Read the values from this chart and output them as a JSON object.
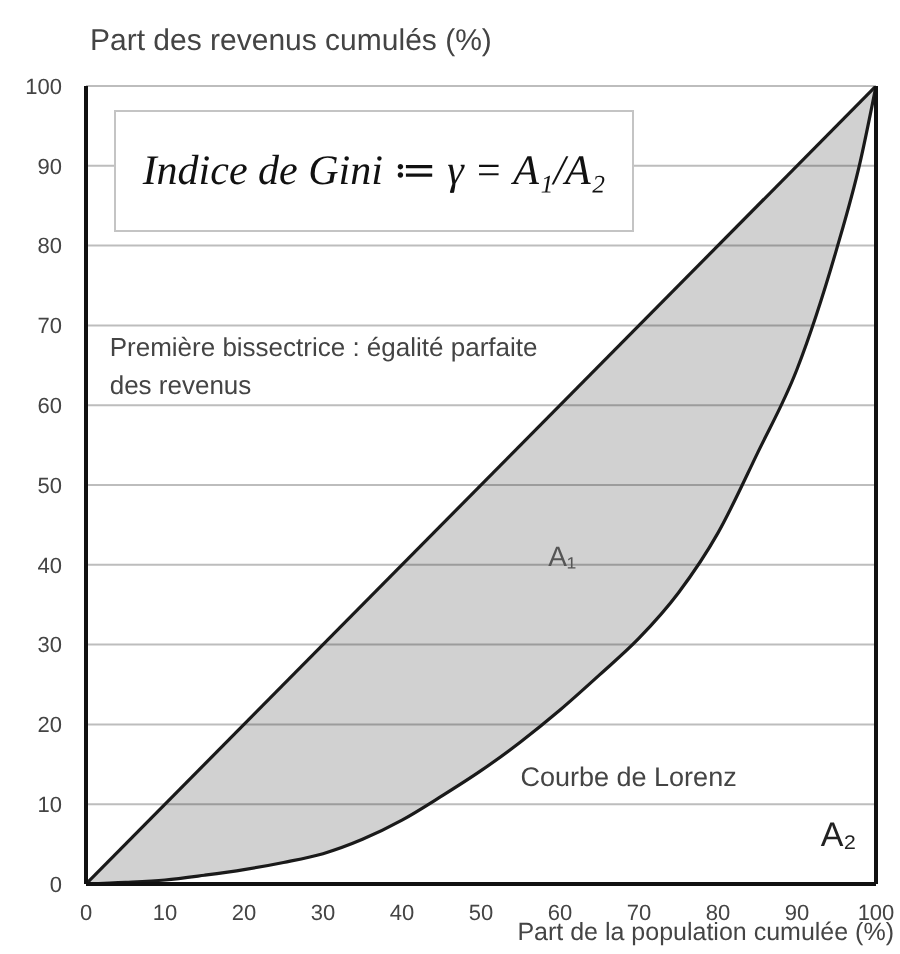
{
  "chart_data": {
    "type": "line",
    "xlabel": "Part de la population cumulée (%)",
    "ylabel": "Part des revenus cumulés (%)",
    "xlim": [
      0,
      100
    ],
    "ylim": [
      0,
      100
    ],
    "xticks": [
      0,
      10,
      20,
      30,
      40,
      50,
      60,
      70,
      80,
      90,
      100
    ],
    "yticks": [
      0,
      10,
      20,
      30,
      40,
      50,
      60,
      70,
      80,
      90,
      100
    ],
    "grid": "y",
    "series": [
      {
        "color": "#1a1a1a",
        "x": [
          0,
          100
        ],
        "values": [
          0,
          100
        ]
      },
      {
        "color": "#1a1a1a",
        "x": [
          0,
          5,
          10,
          15,
          20,
          25,
          30,
          35,
          40,
          45,
          50,
          55,
          60,
          65,
          70,
          75,
          80,
          85,
          90,
          95,
          98,
          100
        ],
        "values": [
          0,
          0.2,
          0.5,
          1.1,
          1.8,
          2.7,
          3.8,
          5.6,
          8,
          11,
          14.2,
          17.8,
          21.8,
          26.2,
          30.8,
          36.5,
          44,
          54,
          64.5,
          79.5,
          90.5,
          100
        ],
        "lower": [
          0,
          0.2,
          0.5,
          1.1,
          1.8,
          2.7,
          3.8,
          5.6,
          8,
          11,
          14.2,
          17.8,
          21.8,
          26.2,
          30.8,
          36.5,
          44,
          54,
          64.5,
          79.5,
          90.5,
          100
        ],
        "upper": [
          0,
          5,
          10,
          15,
          20,
          25,
          30,
          35,
          40,
          45,
          50,
          55,
          60,
          65,
          70,
          75,
          80,
          85,
          90,
          95,
          98,
          100
        ]
      }
    ],
    "annotations": [
      "Indice de Gini ≔ γ = A₁/A₂",
      "Première bissectrice : égalité parfaite\ndes revenus",
      "A₁",
      "Courbe de Lorenz",
      "A₂"
    ]
  }
}
